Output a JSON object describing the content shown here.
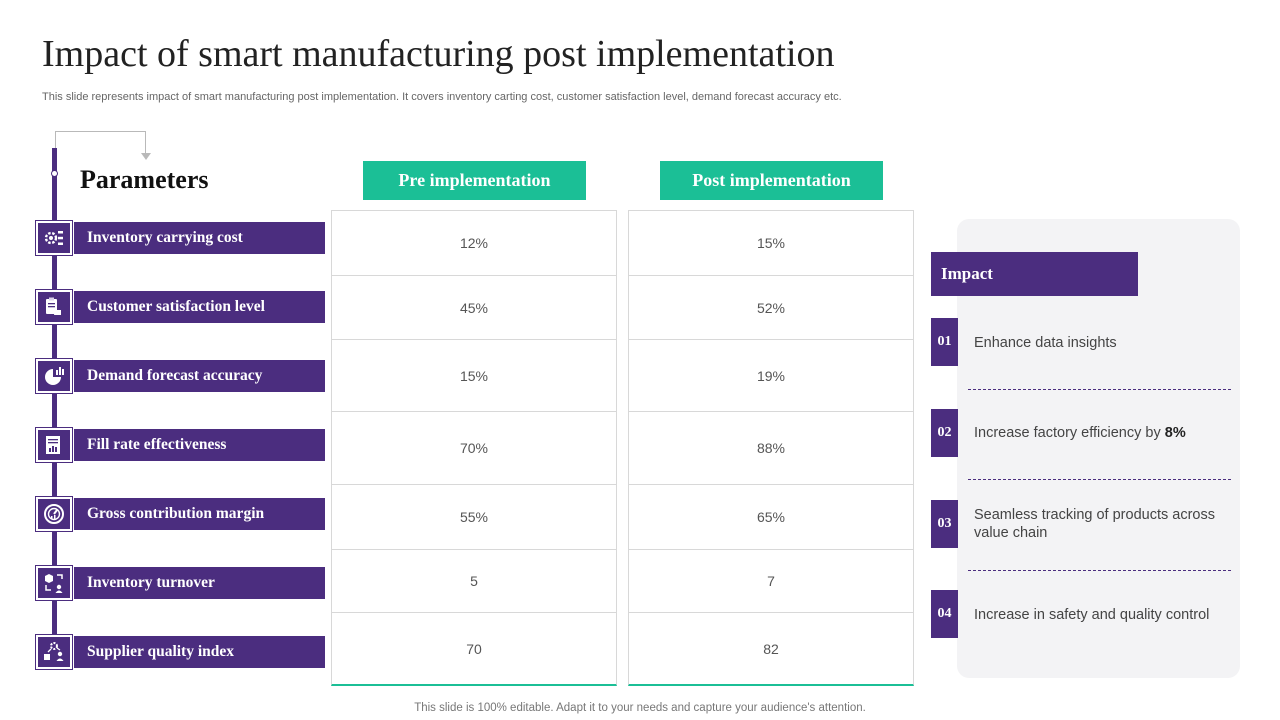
{
  "title": "Impact of smart manufacturing post implementation",
  "subtitle": "This slide represents impact of smart manufacturing post implementation. It covers inventory carting cost, customer satisfaction level, demand forecast accuracy etc.",
  "parameters": {
    "heading": "Parameters",
    "items": [
      {
        "label": "Inventory carrying cost",
        "icon": "gear-list-icon"
      },
      {
        "label": "Customer satisfaction level",
        "icon": "clipboard-hand-icon"
      },
      {
        "label": "Demand forecast accuracy",
        "icon": "pie-chart-icon"
      },
      {
        "label": "Fill rate effectiveness",
        "icon": "report-chart-icon"
      },
      {
        "label": "Gross contribution margin",
        "icon": "gauge-icon"
      },
      {
        "label": "Inventory turnover",
        "icon": "box-cycle-icon"
      },
      {
        "label": "Supplier quality index",
        "icon": "supplier-gear-icon"
      }
    ]
  },
  "pre": {
    "heading": "Pre implementation",
    "values": [
      "12%",
      "45%",
      "15%",
      "70%",
      "55%",
      "5",
      "70"
    ]
  },
  "post": {
    "heading": "Post implementation",
    "values": [
      "15%",
      "52%",
      "19%",
      "88%",
      "65%",
      "7",
      "82"
    ]
  },
  "impact": {
    "heading": "Impact",
    "items": [
      {
        "num": "01",
        "text": "Enhance data insights"
      },
      {
        "num": "02",
        "text": "Increase factory efficiency by ",
        "bold": "8%"
      },
      {
        "num": "03",
        "text": "Seamless tracking of products across value chain"
      },
      {
        "num": "04",
        "text": "Increase in safety and quality control"
      }
    ]
  },
  "footer": "This slide is 100% editable. Adapt it to your needs and capture your audience's attention.",
  "colors": {
    "purple": "#4b2d7f",
    "teal": "#1bbf96"
  }
}
